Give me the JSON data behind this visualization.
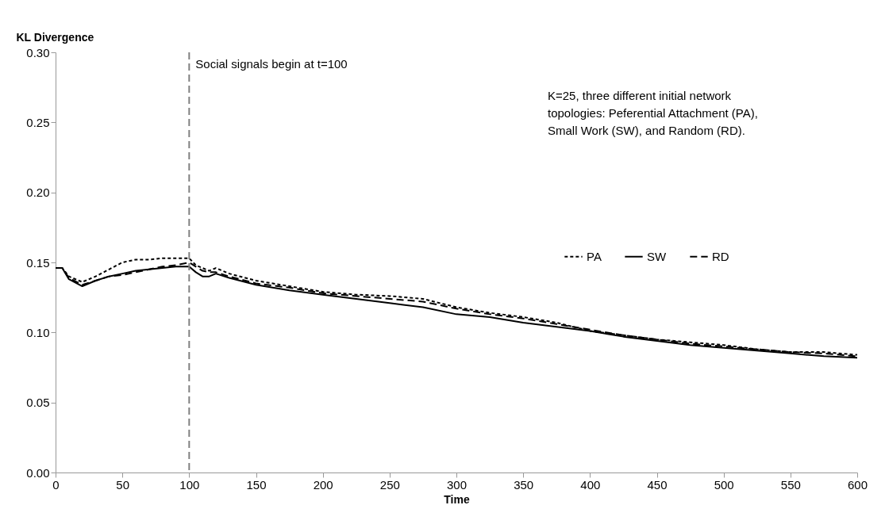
{
  "chart_data": {
    "type": "line",
    "xlabel": "Time",
    "ylabel": "KL Divergence",
    "x": [
      0,
      5,
      10,
      20,
      30,
      40,
      50,
      60,
      70,
      80,
      90,
      100,
      105,
      110,
      115,
      120,
      130,
      150,
      175,
      200,
      225,
      250,
      275,
      300,
      325,
      350,
      375,
      400,
      425,
      450,
      475,
      500,
      525,
      550,
      575,
      600
    ],
    "series": [
      {
        "name": "PA",
        "color": "#000000",
        "line_style": "dotted",
        "values": [
          0.146,
          0.146,
          0.14,
          0.136,
          0.14,
          0.145,
          0.15,
          0.152,
          0.152,
          0.153,
          0.153,
          0.153,
          0.148,
          0.146,
          0.144,
          0.146,
          0.142,
          0.137,
          0.133,
          0.129,
          0.127,
          0.126,
          0.124,
          0.118,
          0.114,
          0.111,
          0.107,
          0.101,
          0.098,
          0.095,
          0.093,
          0.091,
          0.088,
          0.086,
          0.086,
          0.084
        ]
      },
      {
        "name": "SW",
        "color": "#000000",
        "line_style": "solid",
        "values": [
          0.146,
          0.146,
          0.138,
          0.133,
          0.137,
          0.14,
          0.142,
          0.144,
          0.145,
          0.146,
          0.147,
          0.147,
          0.143,
          0.14,
          0.14,
          0.142,
          0.139,
          0.134,
          0.13,
          0.127,
          0.124,
          0.121,
          0.118,
          0.113,
          0.111,
          0.107,
          0.104,
          0.101,
          0.097,
          0.094,
          0.091,
          0.089,
          0.087,
          0.085,
          0.083,
          0.082
        ]
      },
      {
        "name": "RD",
        "color": "#000000",
        "line_style": "dashed",
        "values": [
          0.146,
          0.146,
          0.139,
          0.134,
          0.137,
          0.14,
          0.141,
          0.143,
          0.145,
          0.147,
          0.148,
          0.15,
          0.147,
          0.144,
          0.143,
          0.143,
          0.14,
          0.135,
          0.132,
          0.128,
          0.126,
          0.124,
          0.122,
          0.117,
          0.113,
          0.11,
          0.106,
          0.102,
          0.098,
          0.095,
          0.092,
          0.09,
          0.088,
          0.086,
          0.085,
          0.083
        ]
      }
    ],
    "xlim": [
      0,
      600
    ],
    "xticks": [
      0,
      50,
      100,
      150,
      200,
      250,
      300,
      350,
      400,
      450,
      500,
      550,
      600
    ],
    "ylim": [
      0,
      0.3
    ],
    "yticks": [
      {
        "value": 0,
        "label": "0.00"
      },
      {
        "value": 0.05,
        "label": "0.05"
      },
      {
        "value": 0.1,
        "label": "0.10"
      },
      {
        "value": 0.15,
        "label": "0.15"
      },
      {
        "value": 0.2,
        "label": "0.20"
      },
      {
        "value": 0.25,
        "label": "0.25"
      },
      {
        "value": 0.3,
        "label": "0.30"
      }
    ],
    "ref_lines": [
      {
        "axis": "x",
        "value": 100,
        "label": "Social signals  begin at t=100",
        "color": "#808080",
        "line_style": "dashed"
      }
    ],
    "annotations": [
      "K=25, three different initial network topologies:  Peferential Attachment (PA), Small Work (SW), and Random (RD)."
    ],
    "grid": false,
    "legend": "right"
  }
}
